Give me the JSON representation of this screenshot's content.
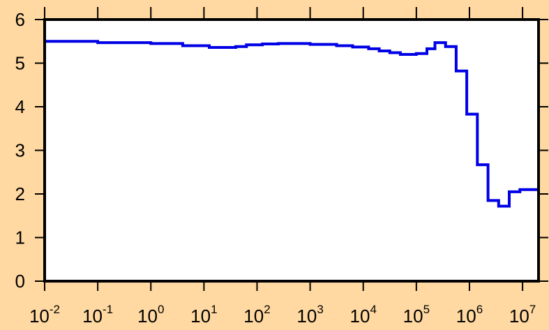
{
  "chart_data": {
    "type": "line",
    "step": true,
    "title": "",
    "xlabel": "",
    "ylabel": "",
    "x_scale": "log",
    "xlim": [
      0.01,
      20000000
    ],
    "ylim": [
      0,
      6
    ],
    "grid": false,
    "background_color": "#ffd9a1",
    "plot_background_color": "#ffffff",
    "series_color": "#0000e6",
    "y_ticks": [
      {
        "value": 0,
        "label": "0"
      },
      {
        "value": 1,
        "label": "1"
      },
      {
        "value": 2,
        "label": "2"
      },
      {
        "value": 3,
        "label": "3"
      },
      {
        "value": 4,
        "label": "4"
      },
      {
        "value": 5,
        "label": "5"
      },
      {
        "value": 6,
        "label": "6"
      }
    ],
    "x_ticks": [
      {
        "value": 0.01,
        "base": "10",
        "exp": "-2"
      },
      {
        "value": 0.1,
        "base": "10",
        "exp": "-1"
      },
      {
        "value": 1,
        "base": "10",
        "exp": "0"
      },
      {
        "value": 10,
        "base": "10",
        "exp": "1"
      },
      {
        "value": 100,
        "base": "10",
        "exp": "2"
      },
      {
        "value": 1000,
        "base": "10",
        "exp": "3"
      },
      {
        "value": 10000,
        "base": "10",
        "exp": "4"
      },
      {
        "value": 100000,
        "base": "10",
        "exp": "5"
      },
      {
        "value": 1000000,
        "base": "10",
        "exp": "6"
      },
      {
        "value": 10000000,
        "base": "10",
        "exp": "7"
      }
    ],
    "series": [
      {
        "bin_edges": [
          0.01,
          0.1,
          1,
          3.98,
          12.6,
          39.8,
          63.1,
          126,
          251,
          1000,
          3160,
          6310,
          12600,
          20000,
          31600,
          50000,
          100000,
          158000,
          224000,
          355000,
          562000,
          891000,
          1410000,
          2240000,
          3550000,
          5620000,
          8910000,
          20000000
        ],
        "values": [
          5.5,
          5.47,
          5.45,
          5.4,
          5.36,
          5.38,
          5.42,
          5.44,
          5.45,
          5.43,
          5.4,
          5.37,
          5.33,
          5.28,
          5.24,
          5.2,
          5.22,
          5.33,
          5.47,
          5.38,
          4.82,
          3.83,
          2.67,
          1.85,
          1.72,
          2.05,
          2.1
        ]
      }
    ]
  }
}
